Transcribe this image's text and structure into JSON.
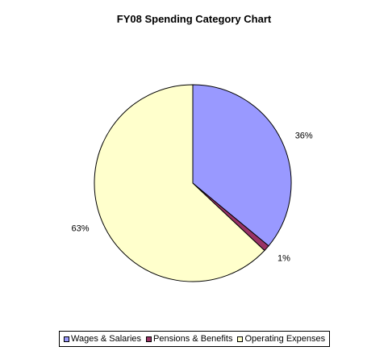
{
  "chart_data": {
    "type": "pie",
    "title": "FY08 Spending Category Chart",
    "categories": [
      "Wages & Salaries",
      "Pensions & Benefits",
      "Operating Expenses"
    ],
    "values": [
      36,
      1,
      63
    ],
    "labels": [
      "36%",
      "1%",
      "63%"
    ],
    "colors": [
      "#9999ff",
      "#993366",
      "#ffffcc"
    ],
    "legend_position": "bottom"
  }
}
